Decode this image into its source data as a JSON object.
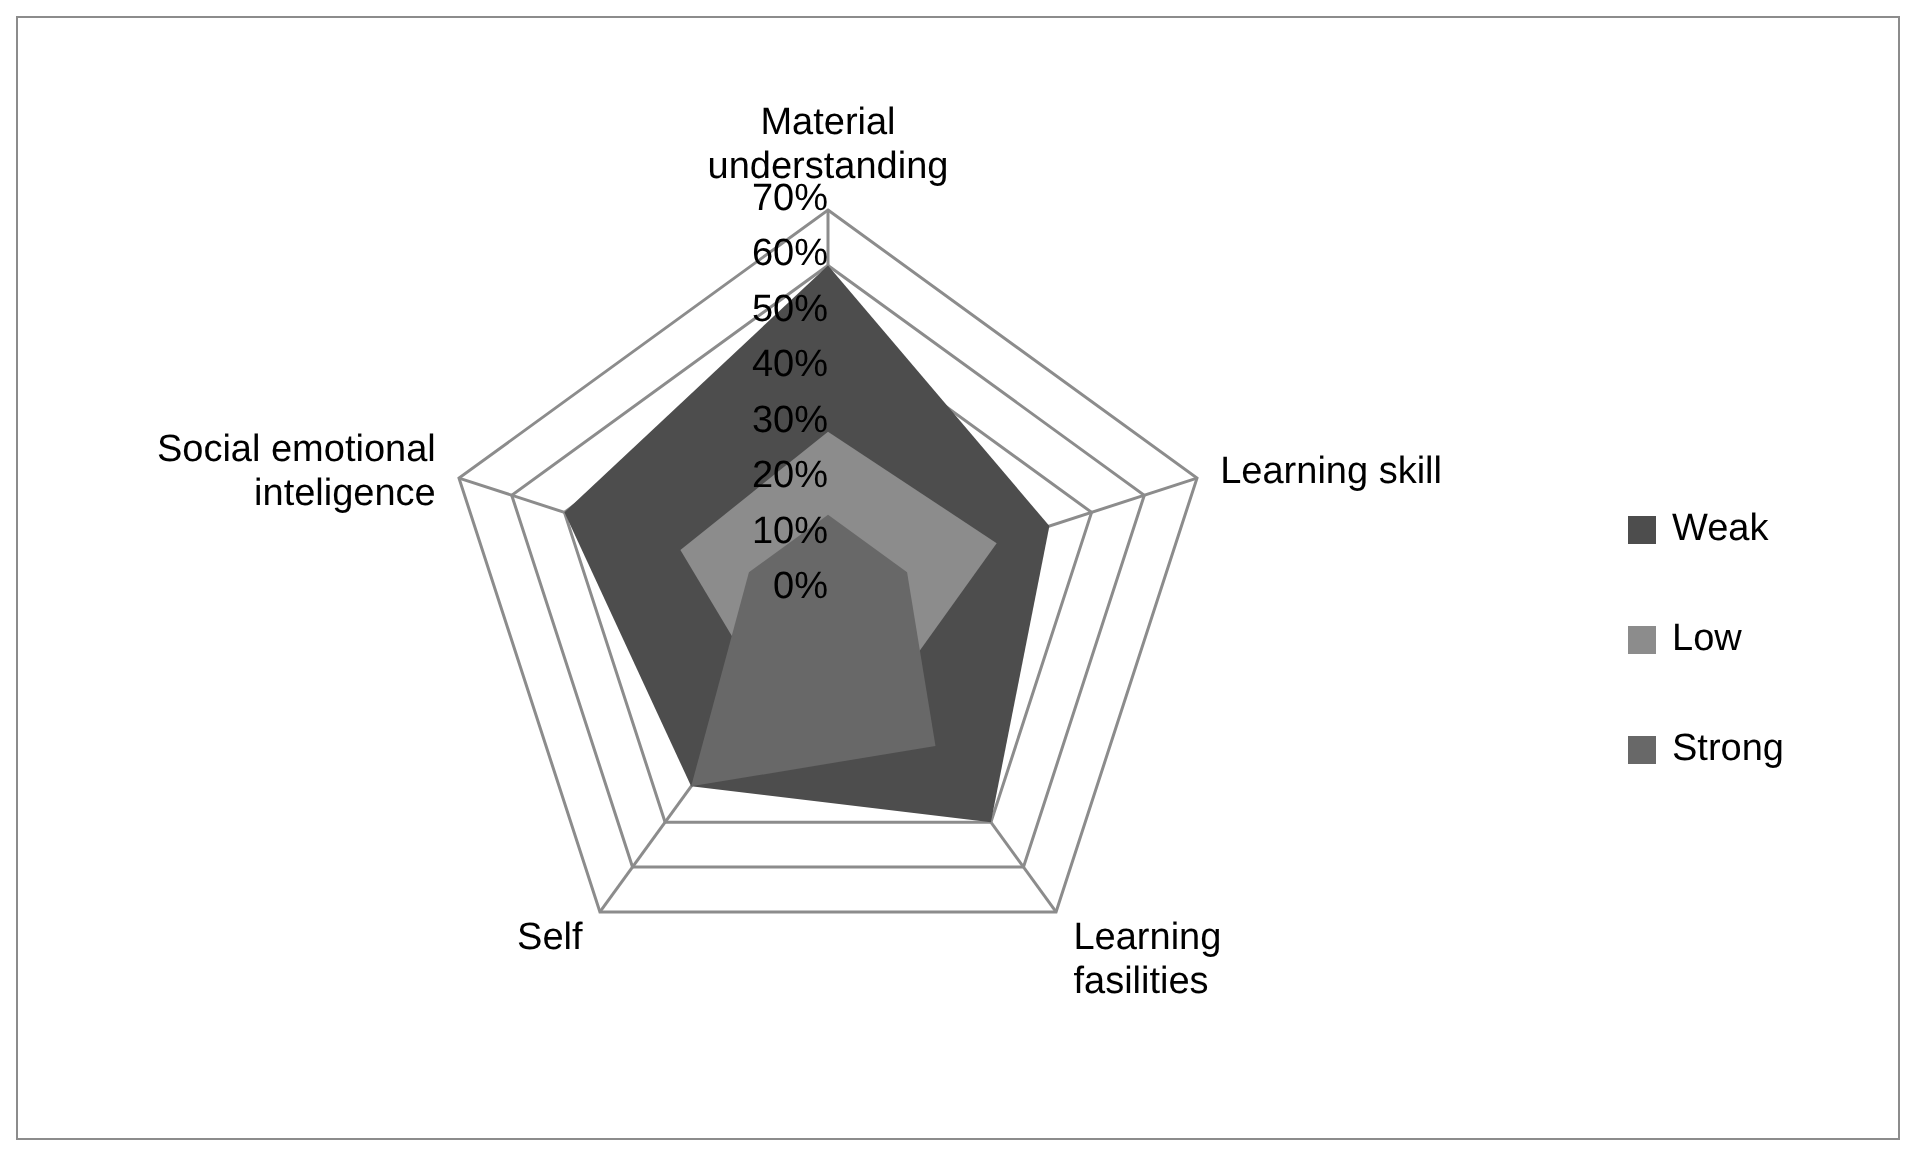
{
  "chart_data": {
    "type": "radar",
    "categories": [
      "Material understanding",
      "Learning skill",
      "Learning fasilities",
      "Self",
      "Social emotional inteligence"
    ],
    "series": [
      {
        "name": "Weak",
        "color": "#4d4d4d",
        "values": [
          60,
          42,
          50,
          42,
          50
        ]
      },
      {
        "name": "Low",
        "color": "#8c8c8c",
        "values": [
          30,
          32,
          20,
          20,
          28
        ]
      },
      {
        "name": "Strong",
        "color": "#686868",
        "values": [
          15,
          15,
          33,
          42,
          15
        ]
      }
    ],
    "ylim": [
      0,
      70
    ],
    "yticks": [
      {
        "value": 0,
        "label": "0%"
      },
      {
        "value": 10,
        "label": "10%"
      },
      {
        "value": 20,
        "label": "20%"
      },
      {
        "value": 30,
        "label": "30%"
      },
      {
        "value": 40,
        "label": "40%"
      },
      {
        "value": 50,
        "label": "50%"
      },
      {
        "value": 60,
        "label": "60%"
      },
      {
        "value": 70,
        "label": "70%"
      }
    ],
    "legend": "right"
  }
}
